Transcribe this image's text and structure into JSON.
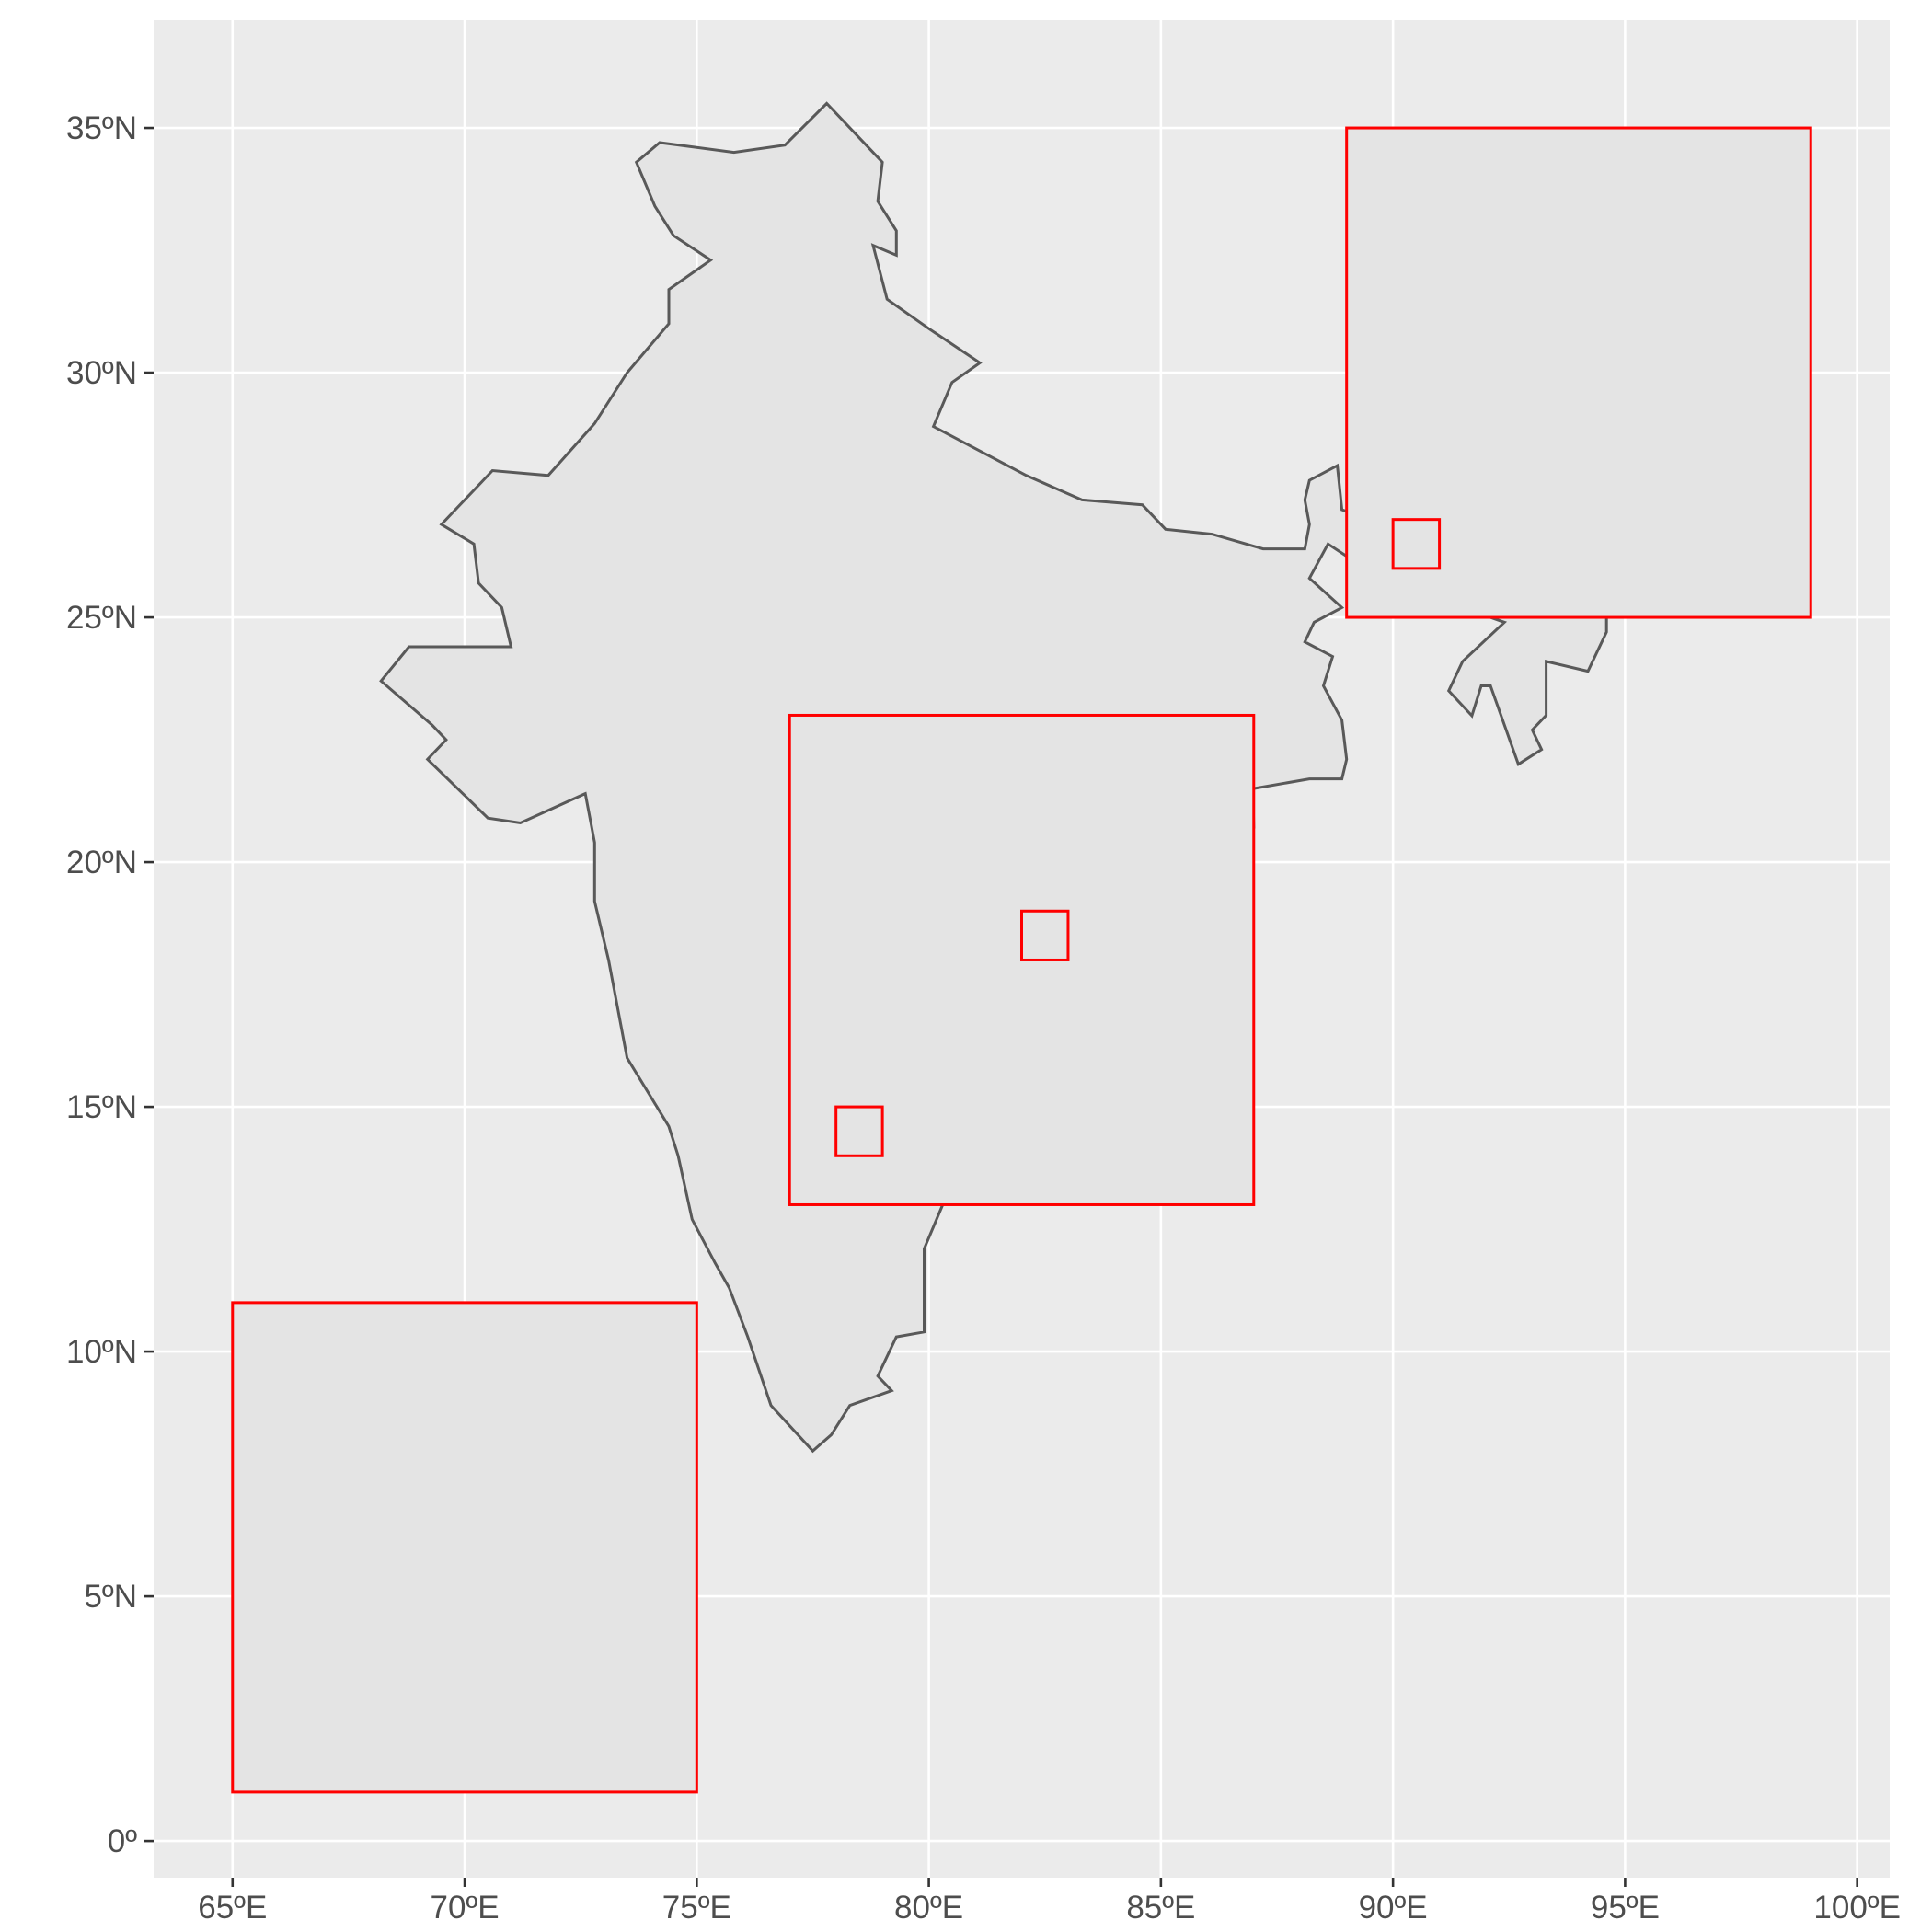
{
  "map": {
    "x_ticks": [
      {
        "value": 65,
        "label": "65ºE"
      },
      {
        "value": 70,
        "label": "70ºE"
      },
      {
        "value": 75,
        "label": "75ºE"
      },
      {
        "value": 80,
        "label": "80ºE"
      },
      {
        "value": 85,
        "label": "85ºE"
      },
      {
        "value": 90,
        "label": "90ºE"
      },
      {
        "value": 95,
        "label": "95ºE"
      },
      {
        "value": 100,
        "label": "100ºE"
      }
    ],
    "y_ticks": [
      {
        "value": 0,
        "label": "0º"
      },
      {
        "value": 5,
        "label": "5ºN"
      },
      {
        "value": 10,
        "label": "10ºN"
      },
      {
        "value": 15,
        "label": "15ºN"
      },
      {
        "value": 20,
        "label": "20ºN"
      },
      {
        "value": 25,
        "label": "25ºN"
      },
      {
        "value": 30,
        "label": "30ºN"
      },
      {
        "value": 35,
        "label": "35ºN"
      }
    ],
    "xlim": [
      63.3,
      100.7
    ],
    "ylim": [
      -0.75,
      37.2
    ],
    "grid": true,
    "colors": {
      "panel": "#ebebeb",
      "grid": "#ffffff",
      "land_fill": "#e4e4e4",
      "land_outline": "#595959",
      "box_outline": "#ff0000",
      "box_fill": "#e4e4e4"
    },
    "india_outline": [
      [
        77.8,
        35.5
      ],
      [
        79.0,
        34.3
      ],
      [
        78.9,
        33.5
      ],
      [
        79.3,
        32.9
      ],
      [
        79.3,
        32.4
      ],
      [
        78.8,
        32.6
      ],
      [
        79.1,
        31.5
      ],
      [
        80.0,
        30.9
      ],
      [
        81.1,
        30.2
      ],
      [
        80.5,
        29.8
      ],
      [
        80.1,
        28.9
      ],
      [
        81.1,
        28.4
      ],
      [
        82.1,
        27.9
      ],
      [
        83.3,
        27.4
      ],
      [
        84.6,
        27.3
      ],
      [
        85.1,
        26.8
      ],
      [
        86.1,
        26.7
      ],
      [
        87.2,
        26.4
      ],
      [
        88.1,
        26.4
      ],
      [
        88.2,
        26.9
      ],
      [
        88.1,
        27.4
      ],
      [
        88.2,
        27.8
      ],
      [
        88.8,
        28.1
      ],
      [
        88.9,
        27.2
      ],
      [
        89.5,
        27.0
      ],
      [
        90.0,
        26.7
      ],
      [
        90.4,
        26.9
      ],
      [
        91.2,
        26.8
      ],
      [
        92.0,
        26.9
      ],
      [
        92.8,
        27.3
      ],
      [
        93.7,
        27.8
      ],
      [
        94.6,
        28.3
      ],
      [
        95.4,
        28.9
      ],
      [
        96.1,
        29.4
      ],
      [
        96.6,
        28.9
      ],
      [
        96.2,
        28.4
      ],
      [
        97.3,
        27.9
      ],
      [
        97.0,
        27.1
      ],
      [
        96.4,
        27.3
      ],
      [
        95.1,
        26.6
      ],
      [
        95.1,
        25.9
      ],
      [
        94.6,
        25.2
      ],
      [
        94.6,
        24.7
      ],
      [
        94.2,
        23.9
      ],
      [
        93.3,
        24.1
      ],
      [
        93.3,
        23.0
      ],
      [
        93.0,
        22.7
      ],
      [
        93.2,
        22.3
      ],
      [
        92.7,
        22.0
      ],
      [
        92.1,
        23.6
      ],
      [
        91.9,
        23.6
      ],
      [
        91.7,
        22.99
      ],
      [
        91.2,
        23.5
      ],
      [
        91.5,
        24.1
      ],
      [
        92.4,
        24.9
      ],
      [
        91.8,
        25.1
      ],
      [
        90.9,
        25.1
      ],
      [
        89.9,
        25.3
      ],
      [
        89.8,
        25.97
      ],
      [
        89.4,
        26.0
      ],
      [
        88.6,
        26.5
      ],
      [
        88.2,
        25.8
      ],
      [
        88.9,
        25.2
      ],
      [
        88.3,
        24.9
      ],
      [
        88.1,
        24.5
      ],
      [
        88.7,
        24.2
      ],
      [
        88.5,
        23.6
      ],
      [
        88.9,
        22.9
      ],
      [
        89.0,
        22.1
      ],
      [
        88.9,
        21.7
      ],
      [
        88.2,
        21.7
      ],
      [
        86.98,
        21.5
      ],
      [
        87.0,
        20.7
      ],
      [
        86.5,
        20.2
      ],
      [
        85.1,
        19.5
      ],
      [
        83.9,
        18.3
      ],
      [
        82.2,
        17.0
      ],
      [
        82.2,
        16.6
      ],
      [
        81.7,
        16.3
      ],
      [
        80.8,
        15.95
      ],
      [
        80.3,
        15.9
      ],
      [
        80.0,
        15.1
      ],
      [
        80.2,
        13.8
      ],
      [
        80.3,
        13.0
      ],
      [
        79.9,
        12.1
      ],
      [
        79.9,
        10.4
      ],
      [
        79.3,
        10.3
      ],
      [
        78.9,
        9.5
      ],
      [
        79.2,
        9.2
      ],
      [
        78.3,
        8.9
      ],
      [
        77.9,
        8.3
      ],
      [
        77.5,
        7.97
      ],
      [
        76.6,
        8.9
      ],
      [
        76.1,
        10.3
      ],
      [
        75.7,
        11.3
      ],
      [
        75.4,
        11.8
      ],
      [
        74.9,
        12.7
      ],
      [
        74.6,
        14.0
      ],
      [
        74.4,
        14.6
      ],
      [
        73.5,
        16.0
      ],
      [
        73.1,
        18.0
      ],
      [
        72.8,
        19.2
      ],
      [
        72.8,
        20.4
      ],
      [
        72.6,
        21.4
      ],
      [
        71.2,
        20.8
      ],
      [
        70.5,
        20.9
      ],
      [
        69.2,
        22.1
      ],
      [
        69.6,
        22.5
      ],
      [
        69.3,
        22.8
      ],
      [
        68.2,
        23.7
      ],
      [
        68.8,
        24.4
      ],
      [
        71.0,
        24.4
      ],
      [
        70.8,
        25.2
      ],
      [
        70.3,
        25.7
      ],
      [
        70.2,
        26.5
      ],
      [
        69.5,
        26.9
      ],
      [
        70.6,
        28.0
      ],
      [
        71.8,
        27.9
      ],
      [
        72.8,
        28.96
      ],
      [
        73.5,
        30.0
      ],
      [
        74.4,
        31.0
      ],
      [
        74.4,
        31.7
      ],
      [
        75.3,
        32.3
      ],
      [
        74.5,
        32.8
      ],
      [
        74.1,
        33.4
      ],
      [
        73.7,
        34.3
      ],
      [
        74.2,
        34.7
      ],
      [
        75.8,
        34.5
      ],
      [
        76.9,
        34.65
      ]
    ],
    "boxes": [
      {
        "xmin": 89,
        "xmax": 99,
        "ymin": 25,
        "ymax": 35
      },
      {
        "xmin": 90,
        "xmax": 91,
        "ymin": 26,
        "ymax": 27
      },
      {
        "xmin": 77,
        "xmax": 87,
        "ymin": 13,
        "ymax": 23
      },
      {
        "xmin": 82,
        "xmax": 83,
        "ymin": 18,
        "ymax": 19
      },
      {
        "xmin": 78,
        "xmax": 79,
        "ymin": 14,
        "ymax": 15
      },
      {
        "xmin": 65,
        "xmax": 75,
        "ymin": 1,
        "ymax": 11
      }
    ]
  }
}
